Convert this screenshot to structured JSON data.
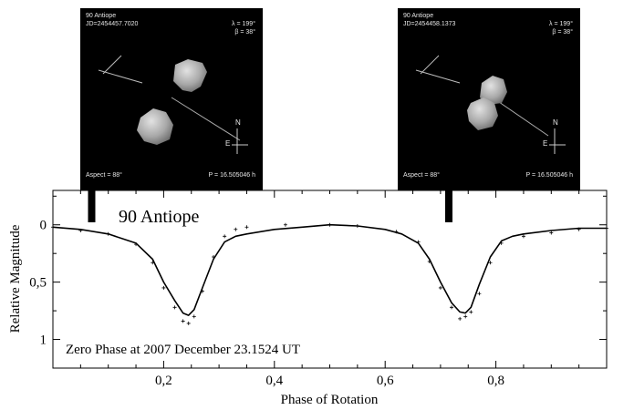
{
  "panels": [
    {
      "name": "90 Antiope",
      "jd": "JD=2454457.7020",
      "lambda": "λ = 199°",
      "beta": "β = 38°",
      "aspect": "Aspect = 88°",
      "period": "P = 16.505046 h",
      "n": "N",
      "e": "E"
    },
    {
      "name": "90 Antiope",
      "jd": "JD=2454458.1373",
      "lambda": "λ = 199°",
      "beta": "β = 38°",
      "aspect": "Aspect = 88°",
      "period": "P = 16.505046 h",
      "n": "N",
      "e": "E"
    }
  ],
  "chart_data": {
    "type": "line",
    "title": "90 Antiope",
    "annotation": "Zero Phase at 2007 December 23.1524 UT",
    "xlabel": "Phase of Rotation",
    "ylabel": "Relative Magnitude",
    "xlim": [
      0,
      1
    ],
    "ylim": [
      1.25,
      -0.3
    ],
    "x_ticks": [
      0.2,
      0.4,
      0.6,
      0.8
    ],
    "x_tick_labels": [
      "0,2",
      "0,4",
      "0,6",
      "0,8"
    ],
    "y_ticks": [
      0,
      0.5,
      1
    ],
    "y_tick_labels": [
      "0",
      "0,5",
      "1"
    ],
    "markers_at_phase": [
      0.07,
      0.715
    ],
    "series": [
      {
        "style": "model-line",
        "x": [
          0,
          0.05,
          0.1,
          0.15,
          0.18,
          0.2,
          0.22,
          0.235,
          0.245,
          0.255,
          0.27,
          0.29,
          0.31,
          0.33,
          0.35,
          0.4,
          0.45,
          0.5,
          0.55,
          0.6,
          0.63,
          0.66,
          0.68,
          0.7,
          0.72,
          0.735,
          0.745,
          0.755,
          0.77,
          0.79,
          0.81,
          0.83,
          0.85,
          0.9,
          0.95,
          1.0
        ],
        "y": [
          0.02,
          0.04,
          0.08,
          0.16,
          0.3,
          0.5,
          0.66,
          0.77,
          0.79,
          0.74,
          0.55,
          0.3,
          0.15,
          0.1,
          0.08,
          0.04,
          0.02,
          0.0,
          0.01,
          0.04,
          0.08,
          0.16,
          0.3,
          0.5,
          0.68,
          0.76,
          0.77,
          0.72,
          0.52,
          0.28,
          0.14,
          0.1,
          0.08,
          0.05,
          0.03,
          0.03
        ]
      },
      {
        "style": "observed-points",
        "x": [
          0,
          0.05,
          0.1,
          0.15,
          0.18,
          0.2,
          0.22,
          0.235,
          0.245,
          0.255,
          0.27,
          0.29,
          0.31,
          0.33,
          0.35,
          0.42,
          0.5,
          0.55,
          0.62,
          0.66,
          0.68,
          0.7,
          0.72,
          0.735,
          0.745,
          0.755,
          0.77,
          0.79,
          0.81,
          0.85,
          0.9,
          0.95,
          1.0
        ],
        "y": [
          0.02,
          0.05,
          0.08,
          0.17,
          0.33,
          0.55,
          0.72,
          0.84,
          0.86,
          0.8,
          0.58,
          0.28,
          0.1,
          0.04,
          0.02,
          0.0,
          0.0,
          0.01,
          0.06,
          0.15,
          0.32,
          0.55,
          0.72,
          0.82,
          0.8,
          0.76,
          0.6,
          0.33,
          0.16,
          0.1,
          0.07,
          0.04,
          0.03
        ]
      }
    ]
  }
}
